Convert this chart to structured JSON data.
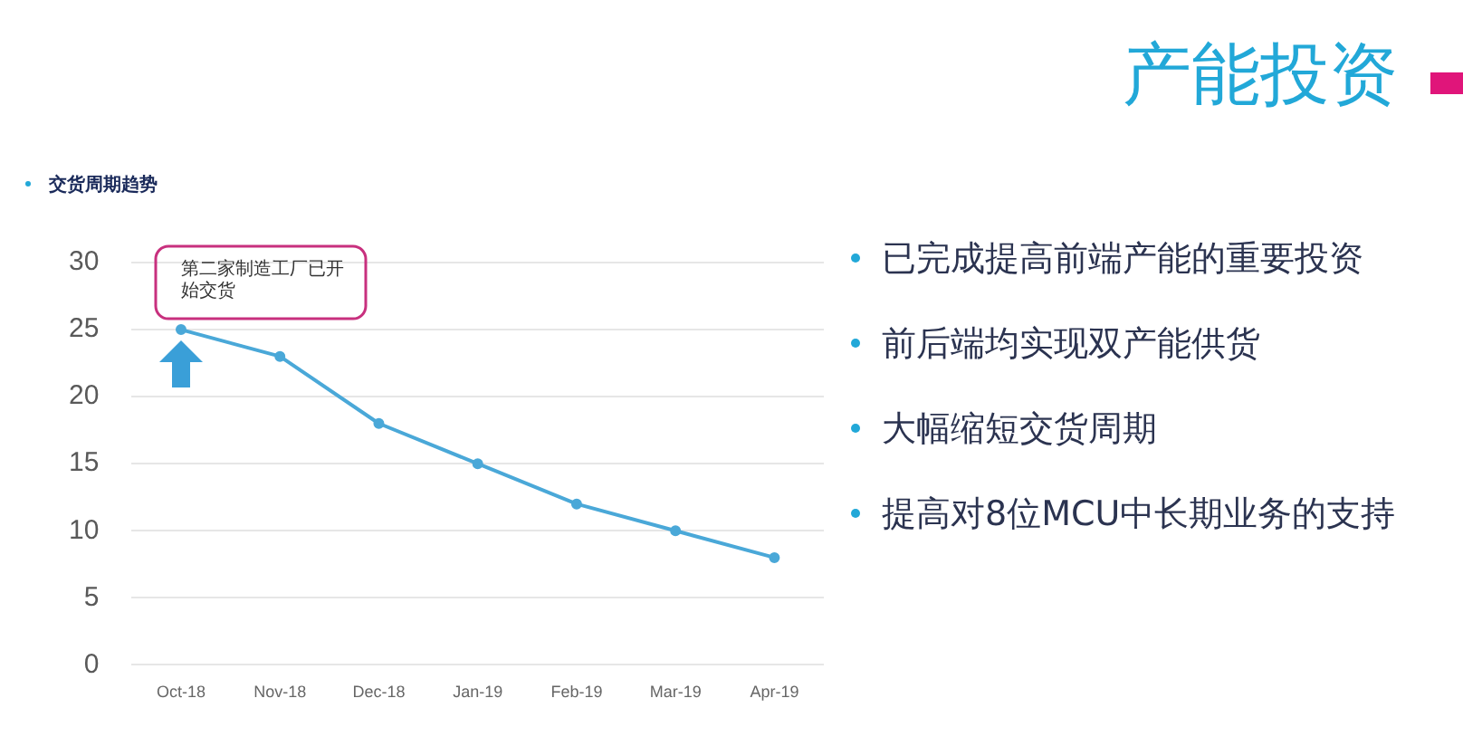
{
  "chart_data": {
    "type": "line",
    "title": "产能投资",
    "subtitle": "交货周期趋势",
    "categories": [
      "Oct-18",
      "Nov-18",
      "Dec-18",
      "Jan-19",
      "Feb-19",
      "Mar-19",
      "Apr-19"
    ],
    "series": [
      {
        "color": "#4aa8d8",
        "values": [
          25,
          23,
          18,
          15,
          12,
          10,
          8
        ]
      }
    ],
    "ylim": [
      0,
      30
    ],
    "yticks": [
      0,
      5,
      10,
      15,
      20,
      25,
      30
    ],
    "grid": "y",
    "legend": false,
    "marker": "circle",
    "line_style": "solid",
    "annotations": [
      {
        "text": "第二家制造工厂已开始交货",
        "x": "Oct-18",
        "y": 25
      },
      "已完成提高前端产能的重要投资",
      "前后端均实现双产能供货",
      "大幅缩短交货周期",
      "提高对8位MCU中长期业务的支持"
    ]
  }
}
